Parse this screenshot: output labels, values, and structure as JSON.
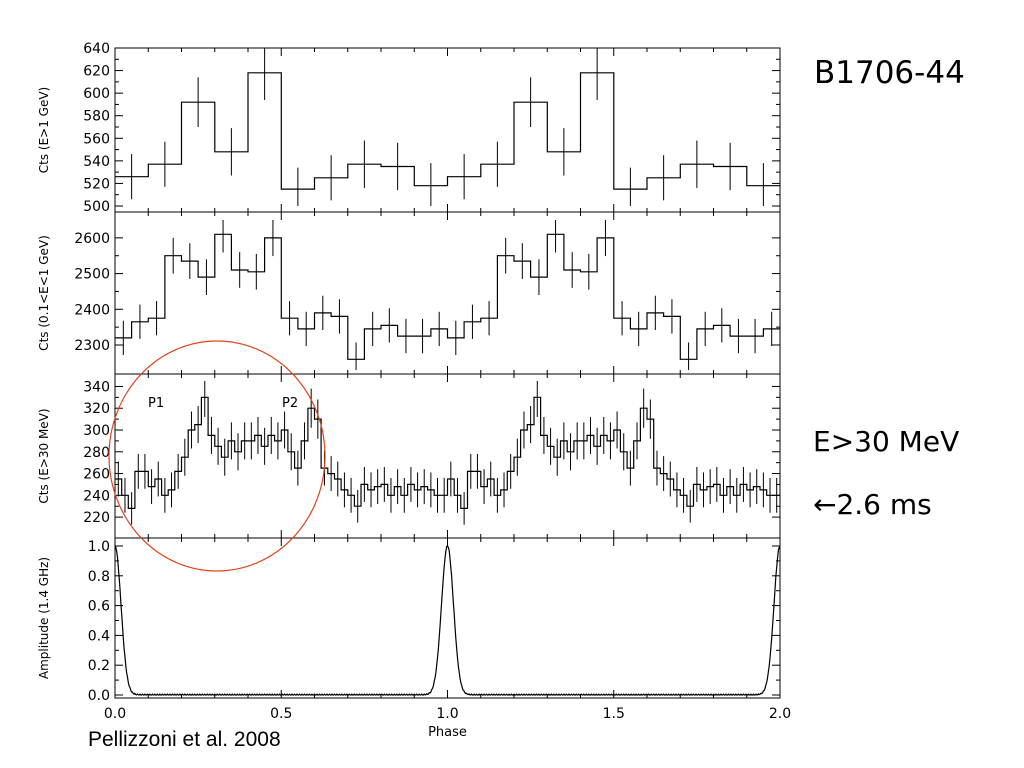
{
  "annotations": {
    "source_name": "B1706-44",
    "energy_label": "E>30 MeV",
    "timing_label": "←2.6 ms",
    "citation": "Pellizzoni et al. 2008",
    "peak1_label": "P1",
    "peak2_label": "P2"
  },
  "colors": {
    "line": "#000000",
    "highlight_circle": "#e0441c",
    "background": "#ffffff"
  },
  "chart_data": [
    {
      "type": "line",
      "step": true,
      "ylabel": "Cts (E>1 GeV)",
      "ylim": [
        500,
        640
      ],
      "yticks": [
        500,
        520,
        540,
        560,
        580,
        600,
        620,
        640
      ],
      "xlim": [
        0,
        2
      ],
      "xticks": [
        0.0,
        0.5,
        1.0,
        1.5,
        2.0
      ],
      "bins_per_cycle": 10,
      "values": [
        526,
        537,
        592,
        548,
        618,
        515,
        525,
        537,
        535,
        518
      ],
      "errors": [
        20,
        20,
        22,
        21,
        24,
        19,
        20,
        21,
        21,
        20
      ]
    },
    {
      "type": "line",
      "step": true,
      "ylabel": "Cts (0.1<E<1 GeV)",
      "ylim": [
        2230,
        2650
      ],
      "yticks": [
        2300,
        2400,
        2500,
        2600
      ],
      "xlim": [
        0,
        2
      ],
      "xticks": [
        0.0,
        0.5,
        1.0,
        1.5,
        2.0
      ],
      "bins_per_cycle": 20,
      "values": [
        2320,
        2365,
        2375,
        2550,
        2535,
        2490,
        2610,
        2510,
        2505,
        2600,
        2375,
        2345,
        2390,
        2380,
        2260,
        2345,
        2355,
        2325,
        2325,
        2345
      ],
      "errors": [
        48,
        48,
        48,
        50,
        50,
        50,
        51,
        50,
        50,
        51,
        48,
        48,
        48,
        48,
        47,
        48,
        48,
        48,
        48,
        48
      ]
    },
    {
      "type": "line",
      "step": true,
      "ylabel": "Cts (E>30 MeV)",
      "ylim": [
        210,
        345
      ],
      "yticks": [
        220,
        240,
        260,
        280,
        300,
        320,
        340
      ],
      "xlim": [
        0,
        2
      ],
      "xticks": [
        0.0,
        0.5,
        1.0,
        1.5,
        2.0
      ],
      "bins_per_cycle": 50,
      "values": [
        255,
        240,
        228,
        262,
        262,
        248,
        255,
        240,
        245,
        262,
        275,
        300,
        305,
        330,
        295,
        285,
        275,
        290,
        280,
        290,
        290,
        295,
        285,
        295,
        290,
        300,
        280,
        265,
        290,
        320,
        310,
        265,
        260,
        255,
        245,
        240,
        230,
        250,
        245,
        248,
        250,
        240,
        248,
        240,
        250,
        245,
        248,
        245,
        240,
        240
      ],
      "errors": [
        16,
        16,
        15,
        16,
        16,
        16,
        16,
        16,
        16,
        16,
        17,
        17,
        17,
        18,
        17,
        17,
        17,
        17,
        17,
        17,
        17,
        17,
        17,
        17,
        17,
        17,
        17,
        16,
        17,
        18,
        18,
        16,
        16,
        16,
        16,
        16,
        15,
        16,
        16,
        16,
        16,
        16,
        16,
        16,
        16,
        16,
        16,
        16,
        16,
        16
      ]
    },
    {
      "type": "line",
      "ylabel": "Amplitude (1.4 GHz)",
      "xlabel": "Phase",
      "ylim": [
        0,
        1
      ],
      "yticks": [
        0.0,
        0.2,
        0.4,
        0.6,
        0.8,
        1.0
      ],
      "xlim": [
        0,
        2
      ],
      "xticks": [
        0.0,
        0.5,
        1.0,
        1.5,
        2.0
      ],
      "peak_phases": [
        0.0,
        1.0,
        2.0
      ],
      "peak_amplitude": 1.0,
      "peak_width_phase": 0.018
    }
  ]
}
